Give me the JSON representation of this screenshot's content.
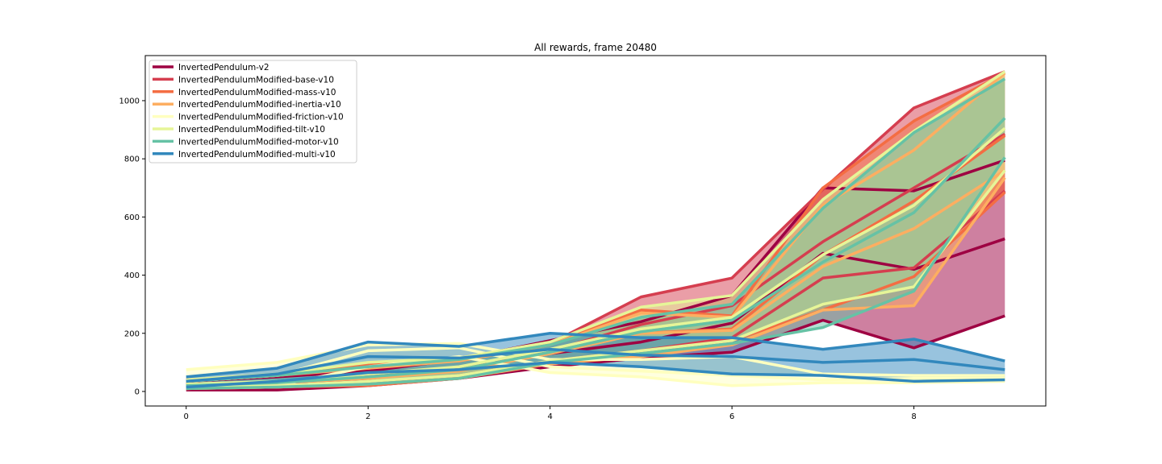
{
  "chart_data": {
    "type": "line",
    "title": "All rewards, frame 20480",
    "xlabel": "",
    "ylabel": "",
    "xlim": [
      -0.45,
      9.45
    ],
    "ylim": [
      -50,
      1155
    ],
    "xticks": [
      0,
      2,
      4,
      6,
      8
    ],
    "yticks": [
      0,
      200,
      400,
      600,
      800,
      1000
    ],
    "grid": false,
    "legend_position": "top-left",
    "x": [
      0,
      1,
      2,
      3,
      4,
      5,
      6,
      7,
      8,
      9
    ],
    "series": [
      {
        "name": "InvertedPendulum-v2",
        "color": "#9e0142",
        "mean": [
          20,
          25,
          45,
          75,
          130,
          170,
          235,
          475,
          420,
          525
        ],
        "upper": [
          35,
          50,
          70,
          110,
          175,
          240,
          330,
          700,
          690,
          795
        ],
        "lower": [
          5,
          5,
          20,
          45,
          85,
          115,
          135,
          245,
          150,
          260
        ]
      },
      {
        "name": "InvertedPendulumModified-base-v10",
        "color": "#d53e4f",
        "mean": [
          25,
          30,
          55,
          80,
          140,
          230,
          295,
          515,
          700,
          885
        ],
        "upper": [
          40,
          55,
          85,
          115,
          165,
          325,
          390,
          695,
          975,
          1100
        ],
        "lower": [
          10,
          15,
          30,
          55,
          105,
          140,
          185,
          390,
          425,
          690
        ]
      },
      {
        "name": "InvertedPendulumModified-mass-v10",
        "color": "#f46d43",
        "mean": [
          20,
          30,
          50,
          75,
          135,
          200,
          215,
          470,
          655,
          880
        ],
        "upper": [
          35,
          55,
          95,
          105,
          160,
          280,
          260,
          700,
          930,
          1095
        ],
        "lower": [
          10,
          15,
          20,
          45,
          100,
          125,
          175,
          280,
          395,
          685
        ]
      },
      {
        "name": "InvertedPendulumModified-inertia-v10",
        "color": "#fdae61",
        "mean": [
          20,
          30,
          45,
          70,
          130,
          200,
          210,
          430,
          560,
          760
        ],
        "upper": [
          35,
          55,
          80,
          105,
          160,
          270,
          255,
          640,
          830,
          1095
        ],
        "lower": [
          10,
          15,
          25,
          45,
          95,
          120,
          160,
          280,
          295,
          735
        ]
      },
      {
        "name": "InvertedPendulumModified-friction-v10",
        "color": "#ffffbf",
        "mean": [
          35,
          55,
          140,
          150,
          85,
          70,
          55,
          40,
          45,
          45
        ],
        "upper": [
          75,
          100,
          160,
          165,
          110,
          110,
          120,
          60,
          55,
          55
        ],
        "lower": [
          15,
          20,
          85,
          120,
          65,
          50,
          20,
          30,
          30,
          35
        ]
      },
      {
        "name": "InvertedPendulumModified-tilt-v10",
        "color": "#e6f598",
        "mean": [
          25,
          35,
          60,
          85,
          145,
          215,
          255,
          470,
          640,
          905
        ],
        "upper": [
          40,
          60,
          100,
          115,
          170,
          290,
          330,
          660,
          895,
          1100
        ],
        "lower": [
          10,
          20,
          35,
          55,
          105,
          140,
          175,
          300,
          360,
          760
        ]
      },
      {
        "name": "InvertedPendulumModified-motor-v10",
        "color": "#66c2a5",
        "mean": [
          20,
          30,
          50,
          75,
          135,
          205,
          245,
          445,
          615,
          940
        ],
        "upper": [
          35,
          55,
          85,
          110,
          160,
          255,
          300,
          630,
          890,
          1075
        ],
        "lower": [
          10,
          15,
          25,
          45,
          100,
          130,
          165,
          220,
          345,
          805
        ]
      },
      {
        "name": "InvertedPendulumModified-multi-v10",
        "color": "#3288bd",
        "mean": [
          35,
          60,
          120,
          115,
          145,
          125,
          120,
          100,
          110,
          75
        ],
        "upper": [
          50,
          80,
          170,
          155,
          200,
          185,
          185,
          145,
          180,
          105
        ],
        "lower": [
          15,
          35,
          65,
          75,
          100,
          85,
          60,
          55,
          35,
          40
        ]
      }
    ]
  }
}
